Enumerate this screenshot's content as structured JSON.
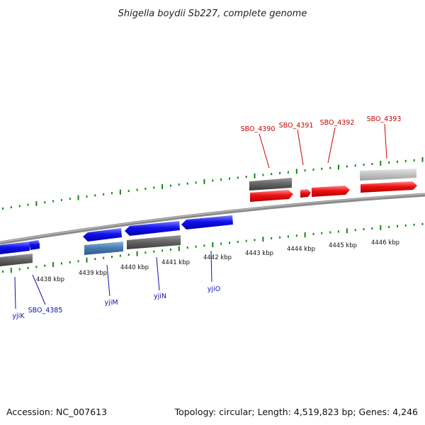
{
  "title": "Shigella boydii Sb227, complete genome",
  "footer": {
    "accession": "Accession: NC_007613",
    "summary": "Topology: circular; Length: 4,519,823 bp; Genes: 4,246"
  },
  "colors": {
    "forward_gene": "#ee1111",
    "reverse_gene": "#1111ee",
    "gray_feature": "#666666",
    "light_feature": "#c4c4c4",
    "steel_feature": "#4a7fb5",
    "tick": "#118811",
    "backbone": "#8a8a8a",
    "fwd_label": "#cc0000",
    "rev_label": "#1010aa"
  },
  "scale": {
    "tick_labels": [
      "4438 kbp",
      "4439 kbp",
      "4440 kbp",
      "4441 kbp",
      "4442 kbp",
      "4443 kbp",
      "4444 kbp",
      "4445 kbp",
      "4446 kbp"
    ]
  },
  "forward_labels": [
    "SBO_4390",
    "SBO_4391",
    "SBO_4392",
    "SBO_4393"
  ],
  "reverse_labels": [
    "yjiK",
    "SBO_4385",
    "yjiM",
    "yjiN",
    "yjiO"
  ]
}
